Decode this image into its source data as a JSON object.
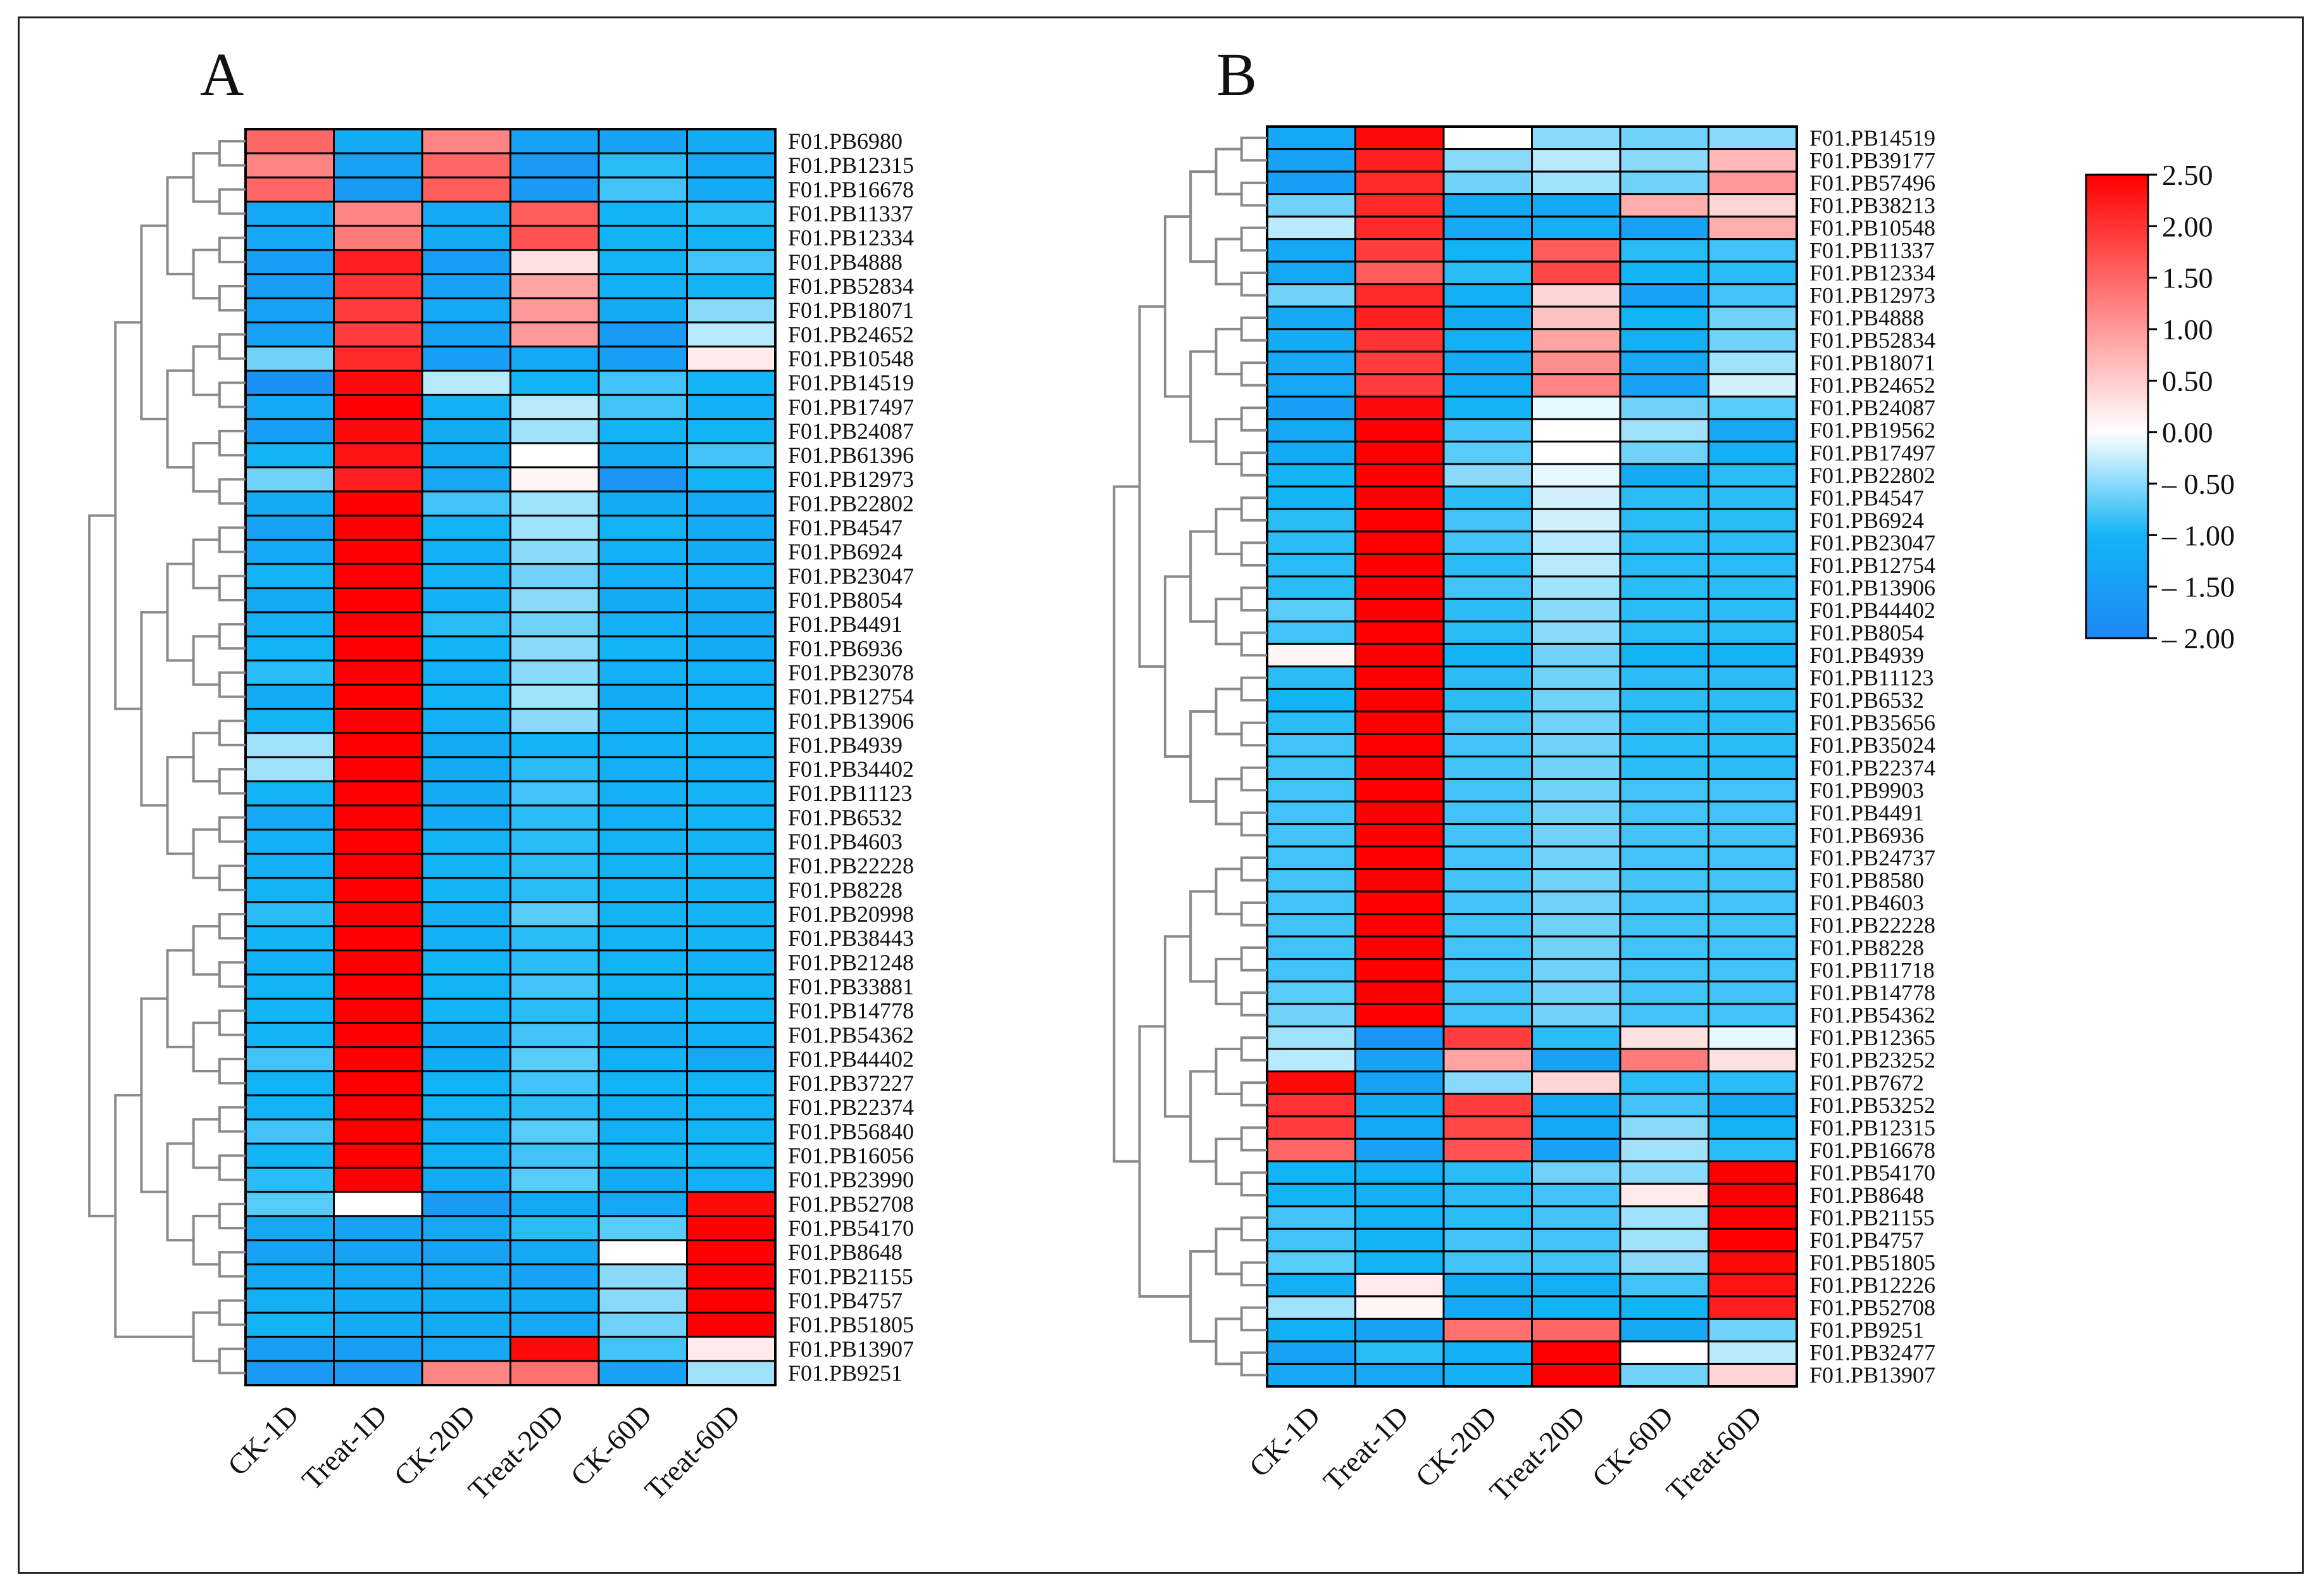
{
  "chart_data": [
    {
      "type": "heatmap",
      "panel_label": "A",
      "columns": [
        "CK-1D",
        "Treat-1D",
        "CK-20D",
        "Treat-20D",
        "CK-60D",
        "Treat-60D"
      ],
      "rows": [
        "F01.PB6980",
        "F01.PB12315",
        "F01.PB16678",
        "F01.PB11337",
        "F01.PB12334",
        "F01.PB4888",
        "F01.PB52834",
        "F01.PB18071",
        "F01.PB24652",
        "F01.PB10548",
        "F01.PB14519",
        "F01.PB17497",
        "F01.PB24087",
        "F01.PB61396",
        "F01.PB12973",
        "F01.PB22802",
        "F01.PB4547",
        "F01.PB6924",
        "F01.PB23047",
        "F01.PB8054",
        "F01.PB4491",
        "F01.PB6936",
        "F01.PB23078",
        "F01.PB12754",
        "F01.PB13906",
        "F01.PB4939",
        "F01.PB34402",
        "F01.PB11123",
        "F01.PB6532",
        "F01.PB4603",
        "F01.PB22228",
        "F01.PB8228",
        "F01.PB20998",
        "F01.PB38443",
        "F01.PB21248",
        "F01.PB33881",
        "F01.PB14778",
        "F01.PB54362",
        "F01.PB44402",
        "F01.PB37227",
        "F01.PB22374",
        "F01.PB56840",
        "F01.PB16056",
        "F01.PB23990",
        "F01.PB52708",
        "F01.PB54170",
        "F01.PB8648",
        "F01.PB21155",
        "F01.PB4757",
        "F01.PB51805",
        "F01.PB13907",
        "F01.PB9251"
      ],
      "values": [
        [
          1.5,
          -1.2,
          1.2,
          -1.4,
          -1.4,
          -1.2
        ],
        [
          1.2,
          -1.4,
          1.5,
          -1.6,
          -0.9,
          -1.3
        ],
        [
          1.5,
          -1.6,
          1.6,
          -1.6,
          -0.8,
          -1.2
        ],
        [
          -1.3,
          1.2,
          -1.3,
          1.6,
          -1.0,
          -0.9
        ],
        [
          -1.3,
          1.3,
          -1.2,
          1.7,
          -1.0,
          -1.0
        ],
        [
          -1.5,
          2.2,
          -1.5,
          0.3,
          -1.0,
          -0.8
        ],
        [
          -1.5,
          2.0,
          -1.4,
          0.9,
          -1.1,
          -1.0
        ],
        [
          -1.4,
          1.9,
          -1.3,
          1.0,
          -1.2,
          -0.5
        ],
        [
          -1.4,
          1.9,
          -1.4,
          1.0,
          -1.6,
          -0.3
        ],
        [
          -0.6,
          2.1,
          -1.5,
          -1.3,
          -1.5,
          0.2
        ],
        [
          -1.8,
          2.4,
          -0.3,
          -1.0,
          -0.8,
          -1.0
        ],
        [
          -1.3,
          2.5,
          -1.1,
          -0.3,
          -0.8,
          -1.1
        ],
        [
          -1.5,
          2.4,
          -1.2,
          -0.4,
          -1.0,
          -1.0
        ],
        [
          -1.0,
          2.3,
          -1.2,
          0.0,
          -1.2,
          -0.8
        ],
        [
          -0.6,
          2.2,
          -1.3,
          0.1,
          -1.7,
          -1.0
        ],
        [
          -1.2,
          2.5,
          -0.8,
          -0.4,
          -1.2,
          -1.3
        ],
        [
          -1.4,
          2.5,
          -1.0,
          -0.4,
          -1.0,
          -1.2
        ],
        [
          -1.3,
          2.5,
          -1.1,
          -0.5,
          -1.1,
          -1.2
        ],
        [
          -1.0,
          2.5,
          -1.0,
          -0.6,
          -1.1,
          -1.1
        ],
        [
          -1.2,
          2.5,
          -1.1,
          -0.5,
          -1.2,
          -1.2
        ],
        [
          -1.1,
          2.5,
          -0.9,
          -0.6,
          -1.1,
          -1.3
        ],
        [
          -1.0,
          2.5,
          -1.0,
          -0.5,
          -1.0,
          -1.2
        ],
        [
          -0.9,
          2.5,
          -1.1,
          -0.5,
          -1.1,
          -1.1
        ],
        [
          -1.2,
          2.5,
          -1.0,
          -0.4,
          -1.2,
          -1.1
        ],
        [
          -1.0,
          2.5,
          -1.1,
          -0.5,
          -1.1,
          -1.0
        ],
        [
          -0.4,
          2.5,
          -1.2,
          -1.0,
          -1.1,
          -1.0
        ],
        [
          -0.4,
          2.5,
          -1.2,
          -0.9,
          -1.1,
          -1.1
        ],
        [
          -1.0,
          2.5,
          -1.2,
          -0.8,
          -1.1,
          -1.0
        ],
        [
          -1.3,
          2.5,
          -1.2,
          -0.9,
          -1.1,
          -1.0
        ],
        [
          -1.1,
          2.5,
          -1.0,
          -0.9,
          -1.0,
          -1.0
        ],
        [
          -1.1,
          2.5,
          -1.0,
          -0.9,
          -1.0,
          -1.0
        ],
        [
          -1.0,
          2.5,
          -1.0,
          -0.9,
          -1.0,
          -1.0
        ],
        [
          -0.9,
          2.5,
          -1.1,
          -0.7,
          -1.0,
          -1.0
        ],
        [
          -1.0,
          2.5,
          -1.1,
          -0.9,
          -1.0,
          -1.0
        ],
        [
          -1.1,
          2.5,
          -1.0,
          -0.9,
          -1.0,
          -1.1
        ],
        [
          -1.0,
          2.5,
          -1.0,
          -0.8,
          -1.0,
          -1.0
        ],
        [
          -1.0,
          2.5,
          -1.0,
          -0.9,
          -1.1,
          -1.0
        ],
        [
          -1.0,
          2.5,
          -1.2,
          -0.8,
          -1.2,
          -1.1
        ],
        [
          -0.8,
          2.5,
          -1.2,
          -0.7,
          -1.1,
          -1.3
        ],
        [
          -1.0,
          2.5,
          -1.0,
          -0.8,
          -1.0,
          -1.0
        ],
        [
          -1.0,
          2.5,
          -1.0,
          -0.9,
          -1.1,
          -1.0
        ],
        [
          -0.8,
          2.5,
          -1.1,
          -0.7,
          -1.1,
          -1.0
        ],
        [
          -1.0,
          2.5,
          -1.1,
          -0.8,
          -1.0,
          -1.0
        ],
        [
          -0.9,
          2.5,
          -1.2,
          -0.7,
          -1.2,
          -1.1
        ],
        [
          -0.7,
          0.0,
          -1.6,
          -1.2,
          -1.3,
          2.4
        ],
        [
          -1.3,
          -1.4,
          -1.3,
          -0.9,
          -0.7,
          2.5
        ],
        [
          -1.4,
          -1.4,
          -1.4,
          -1.3,
          0.0,
          2.5
        ],
        [
          -1.2,
          -1.3,
          -1.3,
          -1.4,
          -0.5,
          2.5
        ],
        [
          -1.1,
          -1.2,
          -1.2,
          -1.2,
          -0.5,
          2.5
        ],
        [
          -1.0,
          -1.2,
          -1.2,
          -1.3,
          -0.6,
          2.5
        ],
        [
          -1.5,
          -1.5,
          -1.3,
          2.4,
          -0.8,
          0.2
        ],
        [
          -1.6,
          -1.6,
          1.2,
          1.4,
          -1.4,
          -0.4
        ]
      ]
    },
    {
      "type": "heatmap",
      "panel_label": "B",
      "columns": [
        "CK-1D",
        "Treat-1D",
        "CK-20D",
        "Treat-20D",
        "CK-60D",
        "Treat-60D"
      ],
      "rows": [
        "F01.PB14519",
        "F01.PB39177",
        "F01.PB57496",
        "F01.PB38213",
        "F01.PB10548",
        "F01.PB11337",
        "F01.PB12334",
        "F01.PB12973",
        "F01.PB4888",
        "F01.PB52834",
        "F01.PB18071",
        "F01.PB24652",
        "F01.PB24087",
        "F01.PB19562",
        "F01.PB17497",
        "F01.PB22802",
        "F01.PB4547",
        "F01.PB6924",
        "F01.PB23047",
        "F01.PB12754",
        "F01.PB13906",
        "F01.PB44402",
        "F01.PB8054",
        "F01.PB4939",
        "F01.PB11123",
        "F01.PB6532",
        "F01.PB35656",
        "F01.PB35024",
        "F01.PB22374",
        "F01.PB9903",
        "F01.PB4491",
        "F01.PB6936",
        "F01.PB24737",
        "F01.PB8580",
        "F01.PB4603",
        "F01.PB22228",
        "F01.PB8228",
        "F01.PB11718",
        "F01.PB14778",
        "F01.PB54362",
        "F01.PB12365",
        "F01.PB23252",
        "F01.PB7672",
        "F01.PB53252",
        "F01.PB12315",
        "F01.PB16678",
        "F01.PB54170",
        "F01.PB8648",
        "F01.PB21155",
        "F01.PB4757",
        "F01.PB51805",
        "F01.PB12226",
        "F01.PB52708",
        "F01.PB9251",
        "F01.PB32477",
        "F01.PB13907"
      ],
      "values": [
        [
          -1.3,
          2.4,
          0.0,
          -0.5,
          -0.6,
          -0.5
        ],
        [
          -1.4,
          2.2,
          -0.5,
          -0.3,
          -0.5,
          0.7
        ],
        [
          -1.5,
          2.1,
          -0.6,
          -0.4,
          -0.6,
          1.0
        ],
        [
          -0.6,
          2.1,
          -1.2,
          -1.3,
          0.8,
          0.4
        ],
        [
          -0.3,
          2.1,
          -1.3,
          -1.1,
          -1.4,
          0.8
        ],
        [
          -1.3,
          1.9,
          -1.0,
          1.6,
          -0.9,
          -0.8
        ],
        [
          -1.3,
          1.6,
          -0.9,
          1.8,
          -1.0,
          -0.9
        ],
        [
          -0.6,
          2.1,
          -1.1,
          0.4,
          -1.4,
          -0.8
        ],
        [
          -1.3,
          2.2,
          -1.2,
          0.6,
          -1.0,
          -0.6
        ],
        [
          -1.2,
          2.0,
          -1.1,
          0.9,
          -1.1,
          -0.6
        ],
        [
          -1.3,
          1.9,
          -1.2,
          1.1,
          -1.3,
          -0.4
        ],
        [
          -1.3,
          1.9,
          -1.2,
          1.2,
          -1.4,
          -0.2
        ],
        [
          -1.5,
          2.4,
          -1.0,
          -0.1,
          -0.6,
          -0.7
        ],
        [
          -1.3,
          2.5,
          -0.8,
          0.0,
          -0.4,
          -1.3
        ],
        [
          -1.2,
          2.5,
          -0.7,
          0.0,
          -0.6,
          -1.1
        ],
        [
          -1.0,
          2.5,
          -0.5,
          -0.1,
          -1.2,
          -0.9
        ],
        [
          -1.0,
          2.5,
          -0.9,
          -0.2,
          -0.9,
          -0.9
        ],
        [
          -0.9,
          2.5,
          -0.8,
          -0.2,
          -0.9,
          -0.9
        ],
        [
          -0.9,
          2.5,
          -0.8,
          -0.3,
          -0.9,
          -0.9
        ],
        [
          -0.9,
          2.5,
          -0.9,
          -0.3,
          -0.9,
          -0.9
        ],
        [
          -0.9,
          2.5,
          -0.8,
          -0.4,
          -0.9,
          -0.9
        ],
        [
          -0.7,
          2.5,
          -0.9,
          -0.5,
          -0.9,
          -0.9
        ],
        [
          -0.8,
          2.5,
          -0.9,
          -0.5,
          -0.9,
          -0.9
        ],
        [
          0.1,
          2.5,
          -1.0,
          -0.6,
          -1.0,
          -1.0
        ],
        [
          -0.9,
          2.5,
          -0.9,
          -0.6,
          -0.9,
          -0.9
        ],
        [
          -1.0,
          2.5,
          -0.9,
          -0.6,
          -0.9,
          -0.9
        ],
        [
          -0.9,
          2.5,
          -0.8,
          -0.6,
          -0.9,
          -0.9
        ],
        [
          -0.8,
          2.5,
          -0.8,
          -0.6,
          -0.9,
          -0.9
        ],
        [
          -0.8,
          2.5,
          -0.8,
          -0.6,
          -0.9,
          -0.9
        ],
        [
          -0.8,
          2.5,
          -0.8,
          -0.6,
          -0.8,
          -0.8
        ],
        [
          -0.8,
          2.5,
          -0.8,
          -0.6,
          -0.8,
          -0.8
        ],
        [
          -0.8,
          2.5,
          -0.8,
          -0.6,
          -0.8,
          -0.8
        ],
        [
          -0.8,
          2.5,
          -0.8,
          -0.6,
          -0.8,
          -0.8
        ],
        [
          -0.8,
          2.5,
          -0.8,
          -0.6,
          -0.8,
          -0.8
        ],
        [
          -0.8,
          2.5,
          -0.8,
          -0.6,
          -0.8,
          -0.8
        ],
        [
          -0.8,
          2.5,
          -0.8,
          -0.6,
          -0.8,
          -0.8
        ],
        [
          -0.8,
          2.5,
          -0.8,
          -0.6,
          -0.8,
          -0.8
        ],
        [
          -0.8,
          2.5,
          -0.8,
          -0.6,
          -0.8,
          -0.8
        ],
        [
          -0.7,
          2.5,
          -0.8,
          -0.6,
          -0.8,
          -0.8
        ],
        [
          -0.6,
          2.5,
          -0.8,
          -0.6,
          -0.8,
          -0.8
        ],
        [
          -0.4,
          -1.7,
          1.9,
          -0.9,
          0.3,
          -0.1
        ],
        [
          -0.3,
          -1.4,
          0.9,
          -1.4,
          1.3,
          0.3
        ],
        [
          2.4,
          -1.4,
          -0.5,
          0.4,
          -0.9,
          -0.9
        ],
        [
          2.0,
          -1.2,
          1.9,
          -1.3,
          -0.8,
          -1.3
        ],
        [
          1.9,
          -1.3,
          1.8,
          -1.3,
          -0.5,
          -1.0
        ],
        [
          1.5,
          -1.4,
          1.7,
          -1.4,
          -0.4,
          -0.9
        ],
        [
          -1.0,
          -1.1,
          -0.9,
          -0.6,
          -0.5,
          2.5
        ],
        [
          -1.0,
          -1.1,
          -0.9,
          -0.8,
          0.2,
          2.5
        ],
        [
          -0.8,
          -1.0,
          -0.9,
          -0.8,
          -0.4,
          2.5
        ],
        [
          -0.8,
          -1.0,
          -0.8,
          -0.8,
          -0.4,
          2.5
        ],
        [
          -0.7,
          -1.0,
          -0.8,
          -0.8,
          -0.5,
          2.4
        ],
        [
          -1.1,
          0.2,
          -1.2,
          -1.1,
          -0.8,
          2.3
        ],
        [
          -0.4,
          0.1,
          -1.3,
          -1.0,
          -1.0,
          2.2
        ],
        [
          -1.1,
          -1.4,
          1.4,
          1.5,
          -1.3,
          -0.6
        ],
        [
          -1.4,
          -0.9,
          -1.1,
          2.5,
          0.0,
          -0.3
        ],
        [
          -1.3,
          -1.3,
          -1.1,
          2.5,
          -0.6,
          0.4
        ]
      ]
    }
  ],
  "colorbar": {
    "min": -2.0,
    "max": 2.5,
    "ticks": [
      "2.50",
      "2.00",
      "1.50",
      "1.00",
      "0.50",
      "0.00",
      "– 0.50",
      "– 1.00",
      "– 1.50",
      "– 2.00"
    ],
    "colors": {
      "low": "#1e88f5",
      "mid": "#ffffff",
      "high": "#ff0000",
      "lowmid": "#12b4f5"
    }
  }
}
